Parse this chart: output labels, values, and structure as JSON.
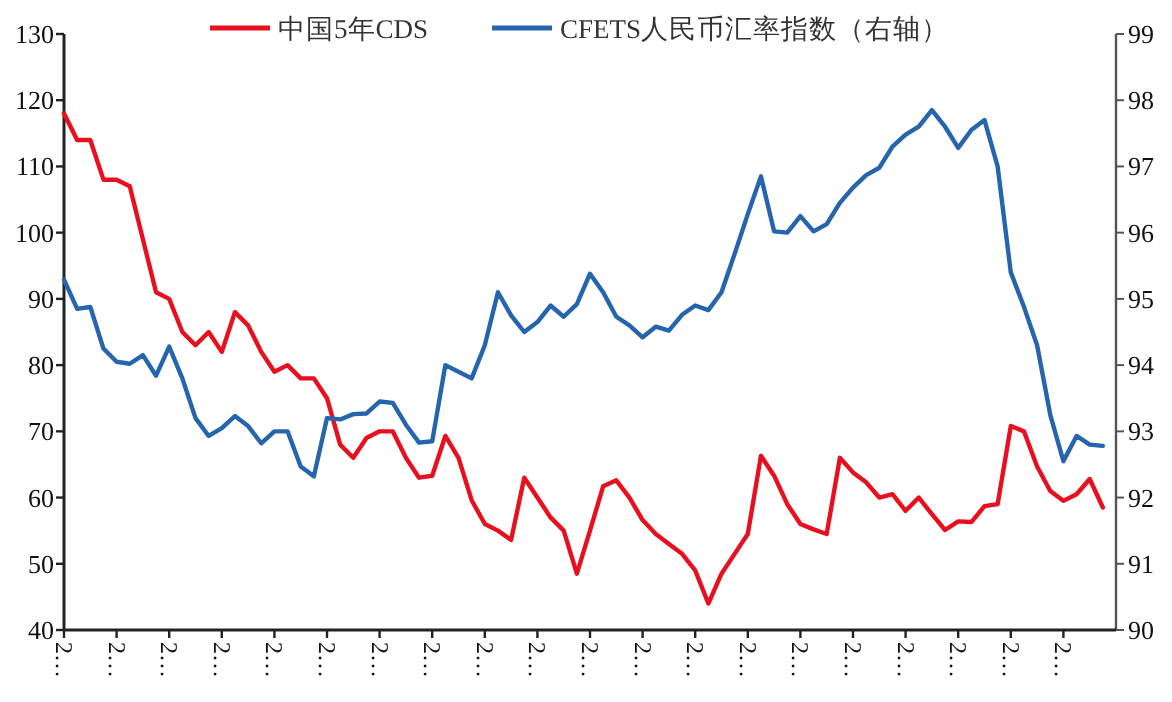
{
  "chart_data": {
    "type": "line",
    "legend": "top",
    "marker": "none",
    "line_style": "solid",
    "categories": [
      "2…",
      null,
      null,
      null,
      "2…",
      null,
      null,
      null,
      "2…",
      null,
      null,
      null,
      "2…",
      null,
      null,
      null,
      "2…",
      null,
      null,
      null,
      "2…",
      null,
      null,
      null,
      "2…",
      null,
      null,
      null,
      "2…",
      null,
      null,
      null,
      "2…",
      null,
      null,
      null,
      "2…",
      null,
      null,
      null,
      "2…",
      null,
      null,
      null,
      "2…",
      null,
      null,
      null,
      "2…",
      null,
      null,
      null,
      "2…",
      null,
      null,
      null,
      "2…",
      null,
      null,
      null,
      "2…",
      null,
      null,
      null,
      "2…",
      null,
      null,
      null,
      "2…",
      null,
      null,
      null,
      "2…",
      null,
      null,
      null,
      "2…",
      null,
      null,
      null
    ],
    "ylim": [
      40,
      130
    ],
    "yticks": [
      40,
      50,
      60,
      70,
      80,
      90,
      100,
      110,
      120,
      130
    ],
    "y2lim": [
      90,
      99
    ],
    "y2ticks": [
      90,
      91,
      92,
      93,
      94,
      95,
      96,
      97,
      98,
      99
    ],
    "series": [
      {
        "name": "中国5年CDS",
        "color": "#e8101e",
        "values": [
          118,
          114,
          114,
          108,
          108,
          107,
          99,
          91,
          90,
          85,
          83,
          85,
          82,
          88,
          86,
          82,
          79,
          80,
          78,
          78,
          75,
          68,
          66,
          69,
          70,
          70,
          66,
          63,
          63.3,
          69.3,
          66,
          59.6,
          56,
          55,
          53.6,
          63,
          60,
          57,
          55,
          48.5,
          55,
          61.7,
          62.6,
          60,
          56.6,
          54.5,
          53,
          51.5,
          49,
          44,
          48.5,
          51.5,
          54.5,
          66.3,
          63.3,
          59,
          56,
          55.2,
          54.5,
          66,
          63.8,
          62.3,
          60,
          60.5,
          58,
          60,
          57.5,
          55.1,
          56.4,
          56.3,
          58.7,
          59,
          70.8,
          70,
          64.7,
          61,
          59.5,
          60.5,
          62.8,
          58.5
        ]
      },
      {
        "name": "CFETS人民币汇率指数（右轴）",
        "color": "#2565ae",
        "axis": "y2",
        "values": [
          95.29,
          94.85,
          94.88,
          94.25,
          94.05,
          94.02,
          94.15,
          93.84,
          94.28,
          93.8,
          93.2,
          92.93,
          93.05,
          93.23,
          93.08,
          92.82,
          93.0,
          93.0,
          92.47,
          92.32,
          93.2,
          93.18,
          93.26,
          93.27,
          93.45,
          93.43,
          93.1,
          92.83,
          92.85,
          94.0,
          93.9,
          93.8,
          94.3,
          95.1,
          94.75,
          94.5,
          94.65,
          94.9,
          94.73,
          94.92,
          95.38,
          95.1,
          94.73,
          94.6,
          94.42,
          94.58,
          94.52,
          94.76,
          94.9,
          94.83,
          95.1,
          95.68,
          96.28,
          96.85,
          96.02,
          96.0,
          96.25,
          96.02,
          96.13,
          96.45,
          96.68,
          96.87,
          96.98,
          97.3,
          97.48,
          97.6,
          97.85,
          97.6,
          97.28,
          97.55,
          97.7,
          97.0,
          95.4,
          94.88,
          94.3,
          93.25,
          92.55,
          92.93,
          92.8,
          92.78
        ]
      }
    ]
  }
}
